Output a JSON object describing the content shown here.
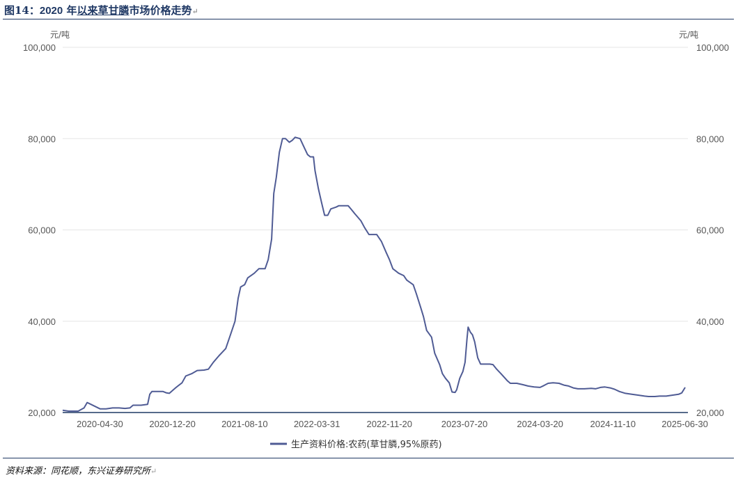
{
  "title": {
    "prefix": "图14：",
    "year": "2020",
    "middle": " 年",
    "underlined": "以来草甘膦",
    "suffix": "市场价格走势"
  },
  "source": "资料来源：同花顺，东兴证券研究所",
  "colors": {
    "series": "#4f5b94",
    "axis": "#1f3864",
    "grid": "#e6e6e6",
    "title": "#1f3864"
  },
  "chart_data": {
    "type": "line",
    "left_unit": "元/吨",
    "right_unit": "元/吨",
    "ylim": [
      20000,
      100000
    ],
    "y_ticks": [
      "100,000",
      "80,000",
      "60,000",
      "40,000",
      "20,000"
    ],
    "y_tick_values": [
      100000,
      80000,
      60000,
      40000,
      20000
    ],
    "x_range": [
      "2020-01-01",
      "2025-07-10"
    ],
    "x_ticks": [
      "2020-04-30",
      "2020-12-20",
      "2021-08-10",
      "2022-03-31",
      "2022-11-20",
      "2023-07-20",
      "2024-03-20",
      "2024-11-10",
      "2025-06-30"
    ],
    "grid": true,
    "legend_position": "bottom-center",
    "series": [
      {
        "name": "生产资料价格:农药(草甘膦,95%原药)",
        "points": [
          [
            "2020-01-01",
            20500
          ],
          [
            "2020-01-20",
            20300
          ],
          [
            "2020-02-20",
            20300
          ],
          [
            "2020-03-10",
            21000
          ],
          [
            "2020-03-20",
            22200
          ],
          [
            "2020-04-10",
            21500
          ],
          [
            "2020-05-01",
            20800
          ],
          [
            "2020-05-20",
            20800
          ],
          [
            "2020-06-10",
            21000
          ],
          [
            "2020-07-01",
            21000
          ],
          [
            "2020-07-20",
            20900
          ],
          [
            "2020-08-05",
            21000
          ],
          [
            "2020-08-15",
            21600
          ],
          [
            "2020-09-10",
            21600
          ],
          [
            "2020-10-01",
            21800
          ],
          [
            "2020-10-08",
            24000
          ],
          [
            "2020-10-15",
            24600
          ],
          [
            "2020-11-20",
            24600
          ],
          [
            "2020-12-01",
            24300
          ],
          [
            "2020-12-10",
            24200
          ],
          [
            "2021-01-01",
            25500
          ],
          [
            "2021-01-20",
            26500
          ],
          [
            "2021-02-01",
            28000
          ],
          [
            "2021-02-20",
            28500
          ],
          [
            "2021-03-10",
            29200
          ],
          [
            "2021-04-01",
            29300
          ],
          [
            "2021-04-15",
            29500
          ],
          [
            "2021-05-01",
            31000
          ],
          [
            "2021-05-20",
            32500
          ],
          [
            "2021-06-10",
            34000
          ],
          [
            "2021-06-25",
            37000
          ],
          [
            "2021-07-10",
            40000
          ],
          [
            "2021-07-20",
            45000
          ],
          [
            "2021-07-28",
            47500
          ],
          [
            "2021-08-10",
            48000
          ],
          [
            "2021-08-20",
            49500
          ],
          [
            "2021-09-10",
            50500
          ],
          [
            "2021-09-25",
            51500
          ],
          [
            "2021-10-15",
            51500
          ],
          [
            "2021-10-25",
            53500
          ],
          [
            "2021-11-05",
            58000
          ],
          [
            "2021-11-12",
            68000
          ],
          [
            "2021-11-20",
            71500
          ],
          [
            "2021-11-30",
            77000
          ],
          [
            "2021-12-10",
            80000
          ],
          [
            "2021-12-20",
            80000
          ],
          [
            "2022-01-01",
            79200
          ],
          [
            "2022-01-10",
            79600
          ],
          [
            "2022-01-20",
            80300
          ],
          [
            "2022-02-05",
            80000
          ],
          [
            "2022-02-15",
            78500
          ],
          [
            "2022-03-01",
            76500
          ],
          [
            "2022-03-10",
            76000
          ],
          [
            "2022-03-20",
            76000
          ],
          [
            "2022-03-25",
            73000
          ],
          [
            "2022-04-05",
            69000
          ],
          [
            "2022-04-15",
            66000
          ],
          [
            "2022-04-25",
            63200
          ],
          [
            "2022-05-05",
            63200
          ],
          [
            "2022-05-15",
            64600
          ],
          [
            "2022-06-01",
            65000
          ],
          [
            "2022-06-10",
            65300
          ],
          [
            "2022-06-20",
            65300
          ],
          [
            "2022-07-10",
            65300
          ],
          [
            "2022-07-20",
            64500
          ],
          [
            "2022-08-01",
            63500
          ],
          [
            "2022-08-20",
            62000
          ],
          [
            "2022-09-01",
            60500
          ],
          [
            "2022-09-15",
            59000
          ],
          [
            "2022-10-10",
            59000
          ],
          [
            "2022-10-25",
            57500
          ],
          [
            "2022-11-10",
            55000
          ],
          [
            "2022-11-20",
            53500
          ],
          [
            "2022-12-01",
            51500
          ],
          [
            "2022-12-20",
            50500
          ],
          [
            "2023-01-05",
            50000
          ],
          [
            "2023-01-15",
            49000
          ],
          [
            "2023-02-05",
            48000
          ],
          [
            "2023-02-15",
            46000
          ],
          [
            "2023-03-01",
            43000
          ],
          [
            "2023-03-10",
            41000
          ],
          [
            "2023-03-20",
            38000
          ],
          [
            "2023-04-05",
            36500
          ],
          [
            "2023-04-15",
            33000
          ],
          [
            "2023-05-01",
            30500
          ],
          [
            "2023-05-10",
            28500
          ],
          [
            "2023-05-20",
            27500
          ],
          [
            "2023-06-01",
            26500
          ],
          [
            "2023-06-10",
            24500
          ],
          [
            "2023-06-20",
            24400
          ],
          [
            "2023-06-25",
            25000
          ],
          [
            "2023-07-05",
            27500
          ],
          [
            "2023-07-15",
            29000
          ],
          [
            "2023-07-22",
            31000
          ],
          [
            "2023-07-28",
            36000
          ],
          [
            "2023-08-01",
            38700
          ],
          [
            "2023-08-08",
            37600
          ],
          [
            "2023-08-15",
            37000
          ],
          [
            "2023-08-22",
            35500
          ],
          [
            "2023-09-01",
            32000
          ],
          [
            "2023-09-10",
            30600
          ],
          [
            "2023-10-10",
            30600
          ],
          [
            "2023-10-20",
            30500
          ],
          [
            "2023-11-01",
            29500
          ],
          [
            "2023-11-15",
            28500
          ],
          [
            "2023-12-05",
            27000
          ],
          [
            "2023-12-15",
            26400
          ],
          [
            "2024-01-05",
            26400
          ],
          [
            "2024-01-25",
            26100
          ],
          [
            "2024-02-10",
            25800
          ],
          [
            "2024-03-01",
            25600
          ],
          [
            "2024-03-20",
            25500
          ],
          [
            "2024-04-01",
            25900
          ],
          [
            "2024-04-15",
            26400
          ],
          [
            "2024-05-01",
            26500
          ],
          [
            "2024-05-20",
            26400
          ],
          [
            "2024-06-05",
            26000
          ],
          [
            "2024-06-20",
            25800
          ],
          [
            "2024-07-05",
            25400
          ],
          [
            "2024-07-20",
            25200
          ],
          [
            "2024-08-10",
            25200
          ],
          [
            "2024-09-01",
            25300
          ],
          [
            "2024-09-15",
            25200
          ],
          [
            "2024-10-01",
            25500
          ],
          [
            "2024-10-15",
            25600
          ],
          [
            "2024-11-01",
            25400
          ],
          [
            "2024-11-15",
            25100
          ],
          [
            "2024-12-01",
            24600
          ],
          [
            "2024-12-20",
            24200
          ],
          [
            "2025-01-10",
            24000
          ],
          [
            "2025-02-01",
            23800
          ],
          [
            "2025-02-20",
            23600
          ],
          [
            "2025-03-05",
            23500
          ],
          [
            "2025-03-25",
            23500
          ],
          [
            "2025-04-10",
            23600
          ],
          [
            "2025-05-01",
            23600
          ],
          [
            "2025-05-20",
            23800
          ],
          [
            "2025-06-10",
            24000
          ],
          [
            "2025-06-20",
            24300
          ],
          [
            "2025-07-01",
            25500
          ]
        ]
      }
    ]
  }
}
